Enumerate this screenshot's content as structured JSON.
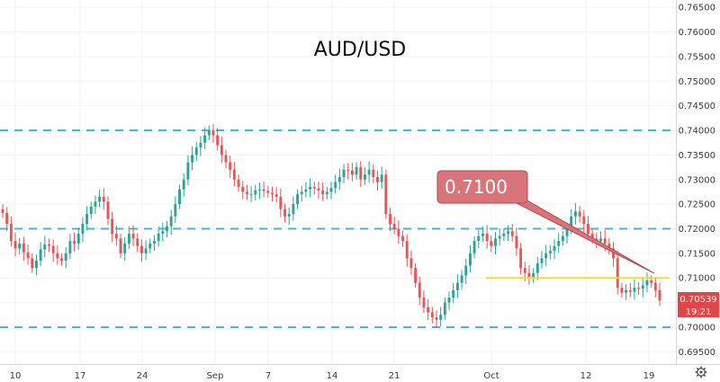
{
  "chart_data": {
    "type": "candlestick",
    "title": "AUD/USD",
    "xlabel": "",
    "ylabel": "",
    "ylim": [
      0.6925,
      0.7665
    ],
    "y_ticks": [
      "0.76500",
      "0.76000",
      "0.75500",
      "0.75000",
      "0.74500",
      "0.74000",
      "0.73500",
      "0.73000",
      "0.72500",
      "0.72000",
      "0.71500",
      "0.71000",
      "0.70500",
      "0.70000",
      "0.69500"
    ],
    "x_ticks": [
      "10",
      "17",
      "24",
      "Sep",
      "7",
      "14",
      "21",
      "Oct",
      "12",
      "19"
    ],
    "grid": true,
    "levels": [
      {
        "value": 0.74,
        "color": "#45b8d6",
        "style": "dashed"
      },
      {
        "value": 0.72,
        "color": "#45b8d6",
        "style": "dashed"
      },
      {
        "value": 0.7,
        "color": "#45b8d6",
        "style": "dashed"
      }
    ],
    "support_line": {
      "value": 0.71,
      "color": "#f0e02a"
    },
    "callout": {
      "text": "0.7100",
      "color": "#d9757a"
    },
    "current_price": {
      "value": "0.70539",
      "time": "19:21",
      "color": "#e04646"
    },
    "candles_close": [
      0.7232,
      0.721,
      0.7175,
      0.716,
      0.717,
      0.7152,
      0.714,
      0.712,
      0.7135,
      0.7158,
      0.7168,
      0.7165,
      0.715,
      0.714,
      0.7135,
      0.715,
      0.7175,
      0.717,
      0.719,
      0.721,
      0.723,
      0.7245,
      0.7255,
      0.7265,
      0.7255,
      0.722,
      0.719,
      0.718,
      0.715,
      0.717,
      0.719,
      0.718,
      0.7165,
      0.715,
      0.716,
      0.717,
      0.7175,
      0.719,
      0.7195,
      0.7205,
      0.7225,
      0.725,
      0.728,
      0.73,
      0.7335,
      0.735,
      0.7365,
      0.7375,
      0.739,
      0.74,
      0.739,
      0.737,
      0.735,
      0.7335,
      0.732,
      0.73,
      0.7285,
      0.7275,
      0.727,
      0.727,
      0.7278,
      0.728,
      0.7277,
      0.7273,
      0.727,
      0.7265,
      0.724,
      0.7225,
      0.723,
      0.725,
      0.727,
      0.7275,
      0.728,
      0.7285,
      0.7282,
      0.7278,
      0.727,
      0.7275,
      0.7283,
      0.7295,
      0.7305,
      0.732,
      0.7318,
      0.731,
      0.7325,
      0.73,
      0.731,
      0.732,
      0.7305,
      0.7295,
      0.731,
      0.723,
      0.721,
      0.72,
      0.7185,
      0.7175,
      0.714,
      0.712,
      0.709,
      0.706,
      0.704,
      0.703,
      0.702,
      0.7015,
      0.7025,
      0.705,
      0.706,
      0.7075,
      0.709,
      0.7105,
      0.7125,
      0.715,
      0.7175,
      0.7185,
      0.719,
      0.7175,
      0.7165,
      0.718,
      0.7185,
      0.719,
      0.7195,
      0.7185,
      0.716,
      0.712,
      0.711,
      0.71,
      0.711,
      0.713,
      0.714,
      0.715,
      0.7155,
      0.7165,
      0.7175,
      0.7185,
      0.72,
      0.7225,
      0.7235,
      0.7225,
      0.721,
      0.719,
      0.718,
      0.7175,
      0.718,
      0.717,
      0.716,
      0.714,
      0.708,
      0.707,
      0.7075,
      0.7072,
      0.708,
      0.7078,
      0.7085,
      0.7095,
      0.709,
      0.7075,
      0.7054
    ]
  }
}
